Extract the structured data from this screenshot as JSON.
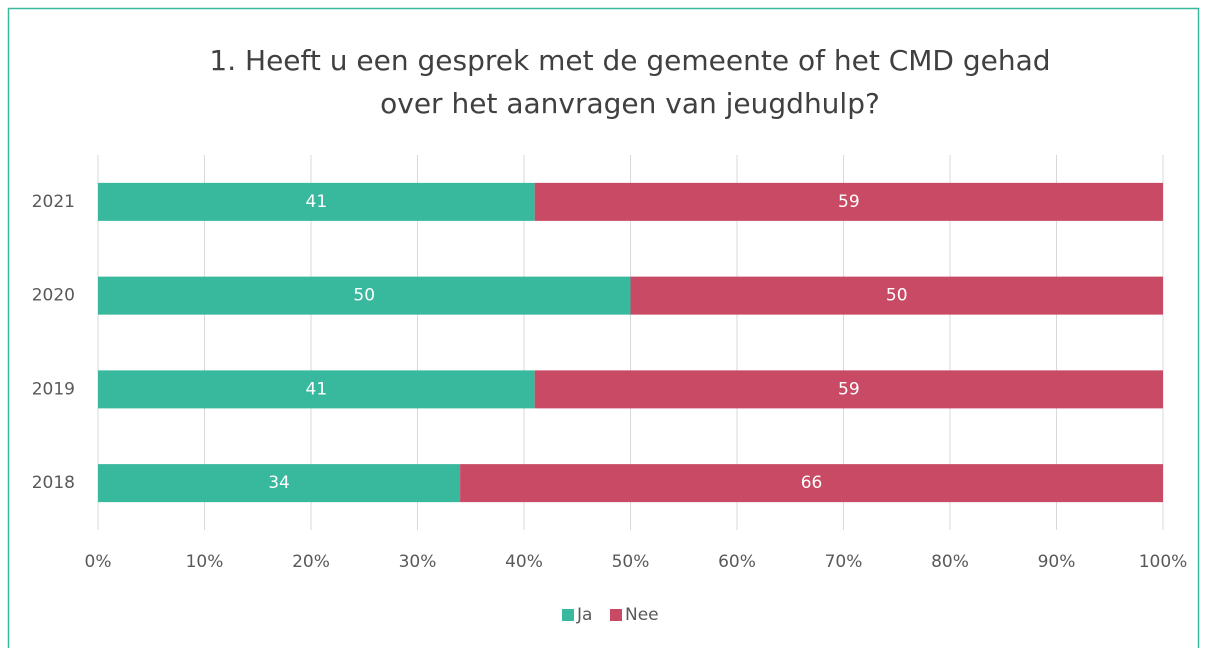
{
  "chart_data": {
    "type": "stacked-bar-horizontal",
    "title": [
      "1. Heeft u een gesprek met de gemeente of het CMD gehad",
      "over het aanvragen van jeugdhulp?"
    ],
    "categories": [
      "2021",
      "2020",
      "2019",
      "2018"
    ],
    "series": [
      {
        "name": "Ja",
        "color": "#38b89d",
        "values": [
          41,
          50,
          41,
          34
        ]
      },
      {
        "name": "Nee",
        "color": "#c94a64",
        "values": [
          59,
          50,
          59,
          66
        ]
      }
    ],
    "xlim": [
      0,
      100
    ],
    "xticks": [
      {
        "value": 0,
        "label": "0%"
      },
      {
        "value": 10,
        "label": "10%"
      },
      {
        "value": 20,
        "label": "20%"
      },
      {
        "value": 30,
        "label": "30%"
      },
      {
        "value": 40,
        "label": "40%"
      },
      {
        "value": 50,
        "label": "50%"
      },
      {
        "value": 60,
        "label": "60%"
      },
      {
        "value": 70,
        "label": "70%"
      },
      {
        "value": 80,
        "label": "80%"
      },
      {
        "value": 90,
        "label": "90%"
      },
      {
        "value": 100,
        "label": "100%"
      }
    ],
    "grid": true,
    "legend": "bottom"
  }
}
